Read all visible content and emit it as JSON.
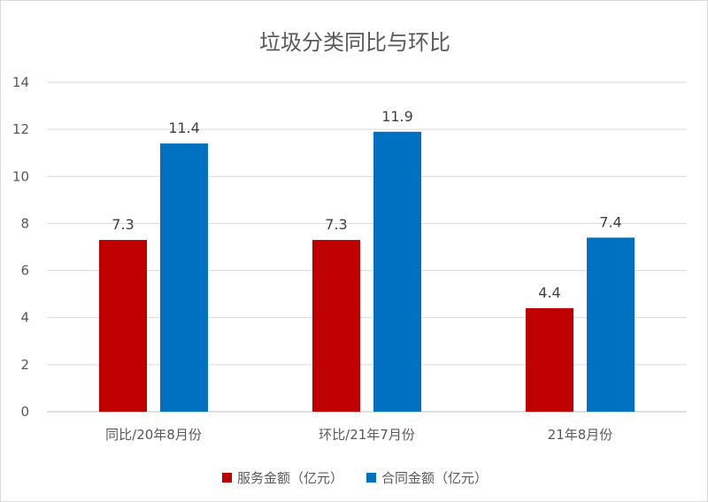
{
  "chart_data": {
    "type": "bar",
    "title": "垃圾分类同比与环比",
    "categories": [
      "同比/20年8月份",
      "环比/21年7月份",
      "21年8月份"
    ],
    "series": [
      {
        "name": "服务金额（亿元）",
        "values": [
          7.3,
          7.3,
          4.4
        ],
        "color": "#c00000",
        "labels": [
          "7.3",
          "7.3",
          "4.4"
        ]
      },
      {
        "name": "合同金额（亿元）",
        "values": [
          11.4,
          11.9,
          7.4
        ],
        "color": "#0070c0",
        "labels": [
          "11.4",
          "11.9",
          "7.4"
        ]
      }
    ],
    "ylim": [
      0,
      14
    ],
    "yticks": [
      "0",
      "2",
      "4",
      "6",
      "8",
      "10",
      "12",
      "14"
    ],
    "grid": true,
    "legend_position": "bottom"
  }
}
